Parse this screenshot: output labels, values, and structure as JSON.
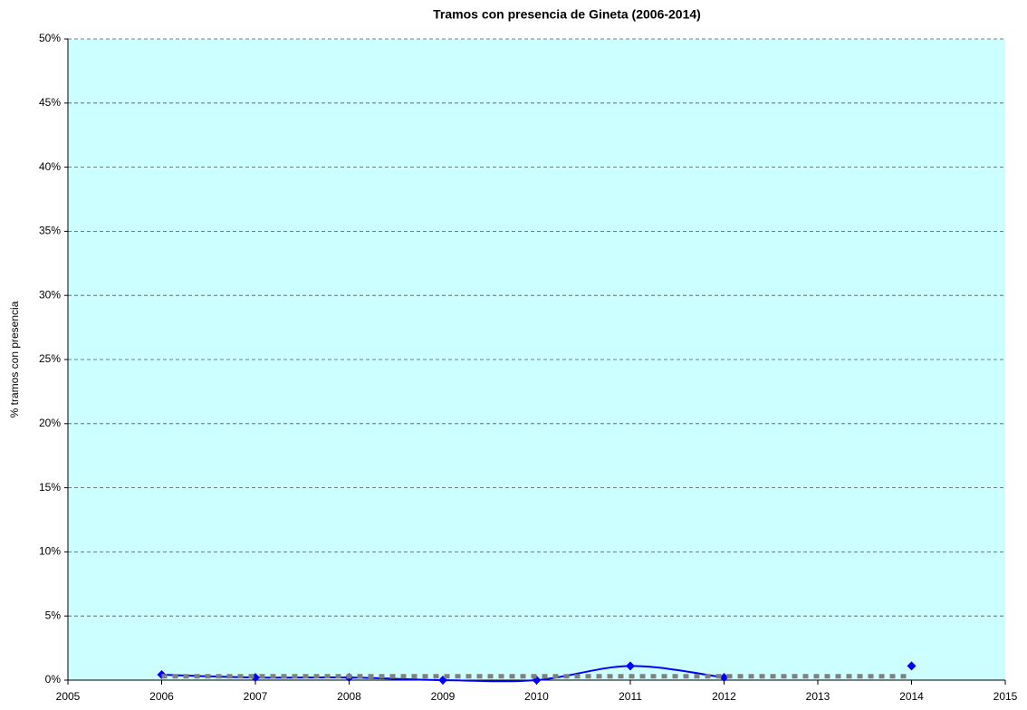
{
  "chart_data": {
    "type": "line",
    "title": "Tramos con presencia de Gineta (2006-2014)",
    "y_label": "% tramos con presencia",
    "x": [
      2006,
      2007,
      2008,
      2009,
      2010,
      2011,
      2012,
      2013,
      2014
    ],
    "series": [
      {
        "color": "#0000ff",
        "values": [
          0.42,
          0.2,
          0.2,
          0,
          0,
          1.1,
          0.2,
          null,
          1.1
        ],
        "marker": "diamond",
        "smooth": true
      },
      {
        "color": "#808080",
        "values": [
          0.3,
          0.3,
          0.3,
          0.3,
          0.3,
          0.3,
          0.3,
          0.3,
          0.3
        ],
        "dashed": true
      }
    ],
    "xlim": [
      2005,
      2015
    ],
    "xticks": [
      2005,
      2006,
      2007,
      2008,
      2009,
      2010,
      2011,
      2012,
      2013,
      2014,
      2015
    ],
    "ylim": [
      0,
      50
    ],
    "yticks": [
      {
        "value": 0,
        "label": "0%"
      },
      {
        "value": 5,
        "label": "5%"
      },
      {
        "value": 10,
        "label": "10%"
      },
      {
        "value": 15,
        "label": "15%"
      },
      {
        "value": 20,
        "label": "20%"
      },
      {
        "value": 25,
        "label": "25%"
      },
      {
        "value": 30,
        "label": "30%"
      },
      {
        "value": 35,
        "label": "35%"
      },
      {
        "value": 40,
        "label": "40%"
      },
      {
        "value": 45,
        "label": "45%"
      },
      {
        "value": 50,
        "label": "50%"
      }
    ],
    "grid": true,
    "background": "#ccffff"
  }
}
